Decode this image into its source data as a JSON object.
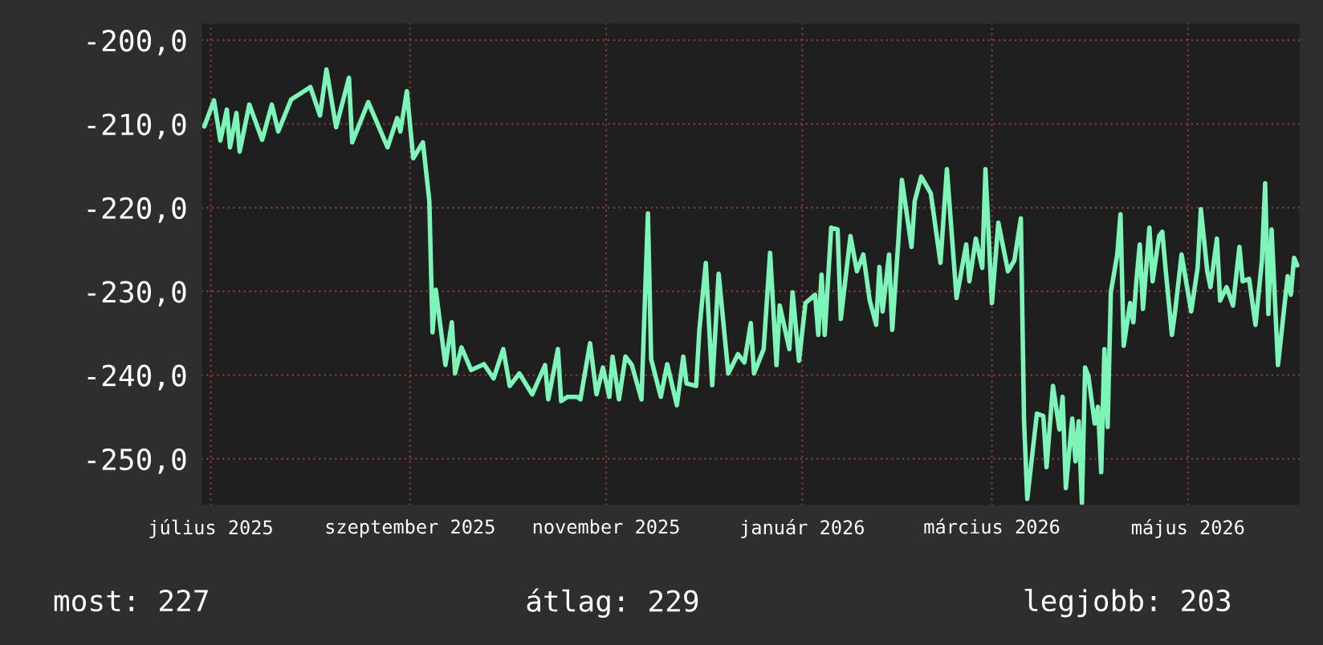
{
  "chart_data": {
    "type": "line",
    "xlim": [
      "2025-06-28",
      "2026-06-05"
    ],
    "xticks": [
      {
        "value": "2025-07-01",
        "label": "július 2025"
      },
      {
        "value": "2025-09-01",
        "label": "szeptember 2025"
      },
      {
        "value": "2025-11-01",
        "label": "november 2025"
      },
      {
        "value": "2026-01-01",
        "label": "január 2026"
      },
      {
        "value": "2026-03-01",
        "label": "március 2026"
      },
      {
        "value": "2026-05-01",
        "label": "május 2026"
      }
    ],
    "ylim": [
      -255.6,
      -197.9
    ],
    "yticks": [
      {
        "value": -200,
        "label": "-200,0"
      },
      {
        "value": -210,
        "label": "-210,0"
      },
      {
        "value": -220,
        "label": "-220,0"
      },
      {
        "value": -230,
        "label": "-230,0"
      },
      {
        "value": -240,
        "label": "-240,0"
      },
      {
        "value": -250,
        "label": "-250,0"
      }
    ],
    "grid": true,
    "annotations": [
      "most: 227",
      "átlag: 229",
      "legjobb: 203"
    ],
    "series": [
      {
        "color": "#7ef5b8",
        "x": [
          "2025-06-29",
          "2025-07-02",
          "2025-07-04",
          "2025-07-06",
          "2025-07-07",
          "2025-07-09",
          "2025-07-10",
          "2025-07-13",
          "2025-07-17",
          "2025-07-20",
          "2025-07-22",
          "2025-07-26",
          "2025-08-01",
          "2025-08-04",
          "2025-08-06",
          "2025-08-09",
          "2025-08-13",
          "2025-08-14",
          "2025-08-19",
          "2025-08-25",
          "2025-08-28",
          "2025-08-29",
          "2025-08-31",
          "2025-09-02",
          "2025-09-05",
          "2025-09-07",
          "2025-09-08",
          "2025-09-09",
          "2025-09-12",
          "2025-09-14",
          "2025-09-15",
          "2025-09-17",
          "2025-09-20",
          "2025-09-24",
          "2025-09-27",
          "2025-09-30",
          "2025-10-02",
          "2025-10-05",
          "2025-10-09",
          "2025-10-13",
          "2025-10-14",
          "2025-10-17",
          "2025-10-18",
          "2025-10-20",
          "2025-10-23",
          "2025-10-24",
          "2025-10-27",
          "2025-10-29",
          "2025-10-31",
          "2025-11-02",
          "2025-11-03",
          "2025-11-05",
          "2025-11-07",
          "2025-11-09",
          "2025-11-12",
          "2025-11-14",
          "2025-11-15",
          "2025-11-18",
          "2025-11-20",
          "2025-11-23",
          "2025-11-25",
          "2025-11-26",
          "2025-11-29",
          "2025-11-30",
          "2025-12-02",
          "2025-12-04",
          "2025-12-06",
          "2025-12-09",
          "2025-12-12",
          "2025-12-14",
          "2025-12-16",
          "2025-12-17",
          "2025-12-20",
          "2025-12-22",
          "2025-12-24",
          "2025-12-25",
          "2025-12-28",
          "2025-12-29",
          "2025-12-31",
          "2026-01-02",
          "2026-01-05",
          "2026-01-06",
          "2026-01-07",
          "2026-01-08",
          "2026-01-10",
          "2026-01-12",
          "2026-01-13",
          "2026-01-16",
          "2026-01-18",
          "2026-01-20",
          "2026-01-22",
          "2026-01-24",
          "2026-01-25",
          "2026-01-26",
          "2026-01-28",
          "2026-01-29",
          "2026-01-31",
          "2026-02-01",
          "2026-02-04",
          "2026-02-05",
          "2026-02-07",
          "2026-02-10",
          "2026-02-13",
          "2026-02-15",
          "2026-02-18",
          "2026-02-21",
          "2026-02-22",
          "2026-02-24",
          "2026-02-26",
          "2026-02-27",
          "2026-03-01",
          "2026-03-03",
          "2026-03-06",
          "2026-03-08",
          "2026-03-10",
          "2026-03-11",
          "2026-03-12",
          "2026-03-15",
          "2026-03-17",
          "2026-03-18",
          "2026-03-20",
          "2026-03-22",
          "2026-03-23",
          "2026-03-24",
          "2026-03-26",
          "2026-03-27",
          "2026-03-28",
          "2026-03-29",
          "2026-03-30",
          "2026-03-31",
          "2026-04-02",
          "2026-04-03",
          "2026-04-04",
          "2026-04-05",
          "2026-04-06",
          "2026-04-07",
          "2026-04-09",
          "2026-04-10",
          "2026-04-11",
          "2026-04-13",
          "2026-04-14",
          "2026-04-15",
          "2026-04-16",
          "2026-04-17",
          "2026-04-19",
          "2026-04-20",
          "2026-04-22",
          "2026-04-23",
          "2026-04-24",
          "2026-04-26",
          "2026-04-27",
          "2026-04-29",
          "2026-05-02",
          "2026-05-04",
          "2026-05-05",
          "2026-05-07",
          "2026-05-08",
          "2026-05-10",
          "2026-05-11",
          "2026-05-13",
          "2026-05-15",
          "2026-05-17",
          "2026-05-18",
          "2026-05-20",
          "2026-05-22",
          "2026-05-24",
          "2026-05-25",
          "2026-05-26",
          "2026-05-27",
          "2026-05-29",
          "2026-06-01",
          "2026-06-02",
          "2026-06-03",
          "2026-06-04"
        ],
        "values": [
          -210.3,
          -207.2,
          -212.0,
          -208.3,
          -212.8,
          -208.7,
          -213.3,
          -207.7,
          -211.9,
          -207.7,
          -210.9,
          -207.1,
          -205.6,
          -209.0,
          -203.5,
          -210.4,
          -204.5,
          -212.2,
          -207.4,
          -212.8,
          -209.3,
          -210.9,
          -206.1,
          -214.1,
          -212.2,
          -219.2,
          -234.9,
          -229.8,
          -238.8,
          -233.7,
          -239.8,
          -236.7,
          -239.4,
          -238.7,
          -240.4,
          -236.9,
          -241.3,
          -239.8,
          -242.3,
          -238.8,
          -242.9,
          -236.9,
          -243.1,
          -242.6,
          -242.6,
          -242.9,
          -236.2,
          -242.3,
          -239.1,
          -242.6,
          -237.8,
          -242.9,
          -237.8,
          -238.8,
          -242.9,
          -220.7,
          -238.1,
          -242.6,
          -238.7,
          -243.6,
          -237.8,
          -241.0,
          -241.3,
          -234.6,
          -226.6,
          -241.2,
          -227.9,
          -239.8,
          -237.5,
          -238.5,
          -233.8,
          -239.8,
          -236.9,
          -225.4,
          -238.8,
          -231.7,
          -236.9,
          -230.1,
          -238.3,
          -231.4,
          -230.4,
          -235.2,
          -228.0,
          -235.2,
          -222.4,
          -222.6,
          -233.3,
          -223.4,
          -227.6,
          -225.6,
          -231.1,
          -234.0,
          -227.1,
          -232.4,
          -225.6,
          -234.6,
          -223.4,
          -216.7,
          -224.7,
          -219.2,
          -216.3,
          -218.3,
          -226.6,
          -215.4,
          -230.8,
          -224.4,
          -228.8,
          -223.7,
          -227.2,
          -215.4,
          -231.4,
          -221.8,
          -227.6,
          -226.3,
          -221.3,
          -245.5,
          -254.8,
          -244.6,
          -244.9,
          -251.0,
          -241.3,
          -246.5,
          -242.6,
          -253.5,
          -245.2,
          -250.3,
          -245.5,
          -255.3,
          -239.1,
          -240.1,
          -245.8,
          -243.8,
          -251.6,
          -236.9,
          -246.2,
          -230.1,
          -225.6,
          -220.8,
          -236.5,
          -231.4,
          -233.7,
          -228.5,
          -224.4,
          -232.1,
          -222.4,
          -228.8,
          -223.4,
          -222.9,
          -227.2,
          -235.2,
          -232.4,
          -225.6,
          -232.4,
          -227.2,
          -220.2,
          -227.6,
          -229.5,
          -223.7,
          -231.1,
          -229.5,
          -231.7,
          -224.7,
          -228.8,
          -228.5,
          -234.0,
          -226.3,
          -217.1,
          -232.7,
          -222.6,
          -238.8,
          -228.2,
          -230.4,
          -226.0,
          -226.9
        ]
      }
    ]
  }
}
